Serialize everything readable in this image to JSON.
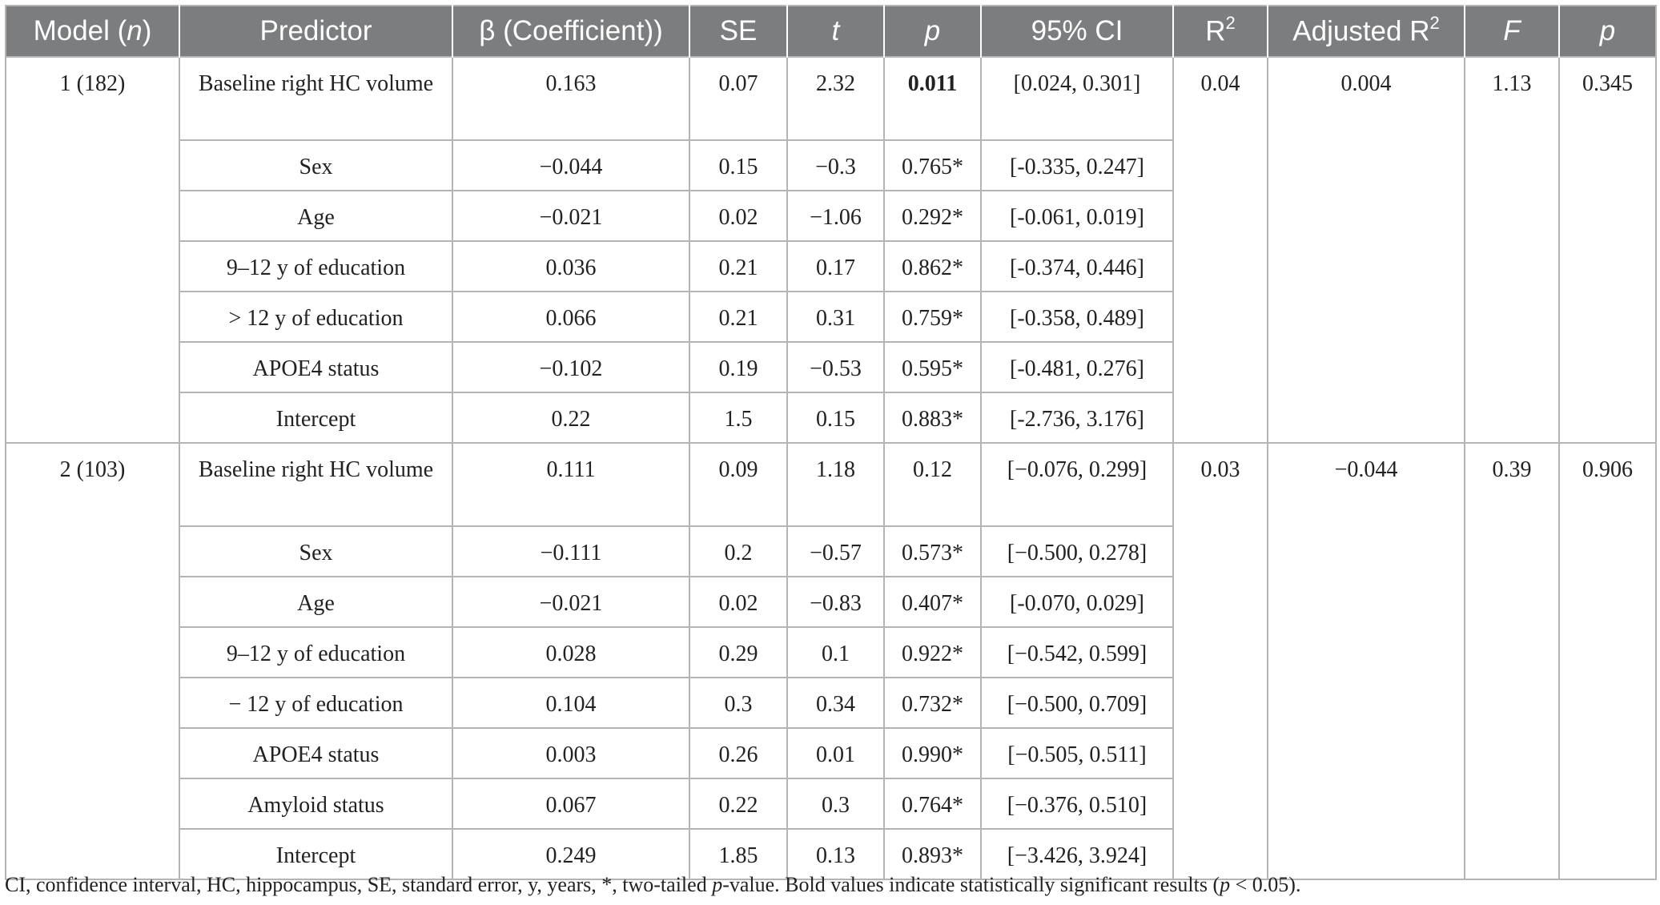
{
  "header": {
    "model": "Model (",
    "model_n": "n",
    "model_close": ")",
    "predictor": "Predictor",
    "beta": "β (Coefficient))",
    "se": "SE",
    "t": "t",
    "p": "p",
    "ci": "95% CI",
    "r2": "R",
    "r2_sup": "2",
    "adj_r2": "Adjusted R",
    "adj_r2_sup": "2",
    "f": "F",
    "p_model": "p"
  },
  "models": [
    {
      "label": "1 (182)",
      "r2": "0.04",
      "adj_r2": "0.004",
      "f": "1.13",
      "p": "0.345",
      "rows": [
        {
          "predictor": "Baseline right HC volume",
          "beta": "0.163",
          "se": "0.07",
          "t": "2.32",
          "p": "0.011",
          "p_bold": true,
          "ci": "[0.024, 0.301]"
        },
        {
          "predictor": "Sex",
          "beta": "−0.044",
          "se": "0.15",
          "t": "−0.3",
          "p": "0.765*",
          "ci": "[-0.335, 0.247]"
        },
        {
          "predictor": "Age",
          "beta": "−0.021",
          "se": "0.02",
          "t": "−1.06",
          "p": "0.292*",
          "ci": "[-0.061, 0.019]"
        },
        {
          "predictor": "9–12 y of education",
          "beta": "0.036",
          "se": "0.21",
          "t": "0.17",
          "p": "0.862*",
          "ci": "[-0.374, 0.446]"
        },
        {
          "predictor": "> 12 y of education",
          "beta": "0.066",
          "se": "0.21",
          "t": "0.31",
          "p": "0.759*",
          "ci": "[-0.358, 0.489]"
        },
        {
          "predictor": "APOE4 status",
          "beta": "−0.102",
          "se": "0.19",
          "t": "−0.53",
          "p": "0.595*",
          "ci": "[-0.481, 0.276]"
        },
        {
          "predictor": "Intercept",
          "beta": "0.22",
          "se": "1.5",
          "t": "0.15",
          "p": "0.883*",
          "ci": "[-2.736, 3.176]"
        }
      ]
    },
    {
      "label": "2 (103)",
      "r2": "0.03",
      "adj_r2": "−0.044",
      "f": "0.39",
      "p": "0.906",
      "rows": [
        {
          "predictor": "Baseline right HC volume",
          "beta": "0.111",
          "se": "0.09",
          "t": "1.18",
          "p": "0.12",
          "ci": "[−0.076, 0.299]"
        },
        {
          "predictor": "Sex",
          "beta": "−0.111",
          "se": "0.2",
          "t": "−0.57",
          "p": "0.573*",
          "ci": "[−0.500, 0.278]"
        },
        {
          "predictor": "Age",
          "beta": "−0.021",
          "se": "0.02",
          "t": "−0.83",
          "p": "0.407*",
          "ci": "[-0.070, 0.029]"
        },
        {
          "predictor": "9–12 y of education",
          "beta": "0.028",
          "se": "0.29",
          "t": "0.1",
          "p": "0.922*",
          "ci": "[−0.542, 0.599]"
        },
        {
          "predictor": "− 12 y of education",
          "beta": "0.104",
          "se": "0.3",
          "t": "0.34",
          "p": "0.732*",
          "ci": "[−0.500, 0.709]"
        },
        {
          "predictor": "APOE4 status",
          "beta": "0.003",
          "se": "0.26",
          "t": "0.01",
          "p": "0.990*",
          "ci": "[−0.505, 0.511]"
        },
        {
          "predictor": "Amyloid status",
          "beta": "0.067",
          "se": "0.22",
          "t": "0.3",
          "p": "0.764*",
          "ci": "[−0.376, 0.510]"
        },
        {
          "predictor": "Intercept",
          "beta": "0.249",
          "se": "1.85",
          "t": "0.13",
          "p": "0.893*",
          "ci": "[−3.426, 3.924]"
        }
      ]
    }
  ],
  "footnote": {
    "part1": "CI, confidence interval, HC, hippocampus, SE, standard error, y, years, *, two-tailed ",
    "p": "p",
    "part2": "-value. Bold values indicate statistically significant results (",
    "p2": "p",
    "part3": " < 0.05)."
  }
}
